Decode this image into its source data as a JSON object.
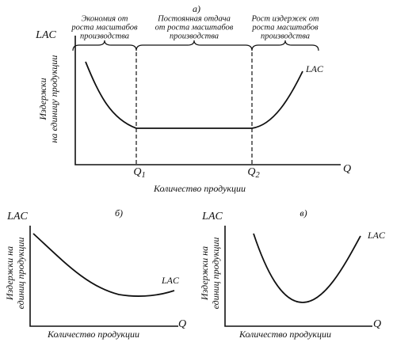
{
  "panel_a": {
    "label": "а)",
    "y_symbol": "LAC",
    "y_title": [
      "Издержки",
      "на единицу продукции"
    ],
    "x_symbol": "Q",
    "x_title": "Количество продукции",
    "curve_label": "LAC",
    "regions": [
      {
        "lines": [
          "Экономия от",
          "роста масштабов",
          "производства"
        ]
      },
      {
        "lines": [
          "Постоянная отдача",
          "от роста масштабов",
          "производства"
        ]
      },
      {
        "lines": [
          "Рост издержек от",
          "роста масштабов",
          "производства"
        ]
      }
    ],
    "q_marks": [
      {
        "symbol": "Q",
        "subscript": "1"
      },
      {
        "symbol": "Q",
        "subscript": "2"
      }
    ]
  },
  "panel_b": {
    "label": "б)",
    "y_symbol": "LAC",
    "y_title": [
      "Издержки на",
      "единиц продукции"
    ],
    "x_symbol": "Q",
    "x_title": "Количество продукции",
    "curve_label": "LAC"
  },
  "panel_c": {
    "label": "в)",
    "y_symbol": "LAC",
    "y_title": [
      "Издержки на",
      "единиц продукции"
    ],
    "x_symbol": "Q",
    "x_title": "Количество продукции",
    "curve_label": "LAC"
  }
}
